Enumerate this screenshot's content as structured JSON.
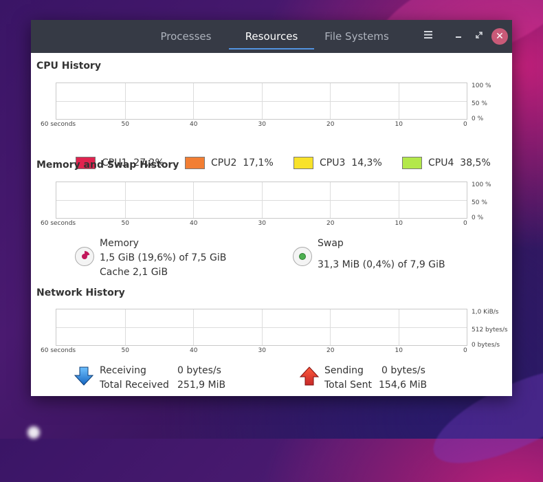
{
  "tabs": [
    {
      "label": "Processes",
      "active": false
    },
    {
      "label": "Resources",
      "active": true
    },
    {
      "label": "File Systems",
      "active": false
    }
  ],
  "window_controls": {
    "menu_icon": "hamburger-icon",
    "minimize_icon": "minimize-icon",
    "maximize_icon": "maximize-icon",
    "close_icon": "close-icon"
  },
  "cpu": {
    "title": "CPU History",
    "y_labels": [
      "100 %",
      "50 %",
      "0 %"
    ],
    "x_labels": [
      "60 seconds",
      "50",
      "40",
      "30",
      "20",
      "10",
      "0"
    ],
    "cores": [
      {
        "name": "CPU1",
        "value": "27,2%",
        "color": "#e0234f"
      },
      {
        "name": "CPU2",
        "value": "17,1%",
        "color": "#f27e33"
      },
      {
        "name": "CPU3",
        "value": "14,3%",
        "color": "#f8e22a"
      },
      {
        "name": "CPU4",
        "value": "38,5%",
        "color": "#b3e84a"
      }
    ]
  },
  "memory": {
    "title": "Memory and Swap History",
    "y_labels": [
      "100 %",
      "50 %",
      "0 %"
    ],
    "x_labels": [
      "60 seconds",
      "50",
      "40",
      "30",
      "20",
      "10",
      "0"
    ],
    "memory_label": "Memory",
    "memory_usage": "1,5 GiB (19,6%) of 7,5 GiB",
    "cache": "Cache 2,1 GiB",
    "memory_color": "#c2185b",
    "memory_fraction": 0.196,
    "swap_label": "Swap",
    "swap_usage": "31,3 MiB (0,4%) of 7,9 GiB",
    "swap_color": "#4caf50",
    "swap_fraction": 0.004
  },
  "network": {
    "title": "Network History",
    "y_labels": [
      "1,0 KiB/s",
      "512 bytes/s",
      "0 bytes/s"
    ],
    "x_labels": [
      "60 seconds",
      "50",
      "40",
      "30",
      "20",
      "10",
      "0"
    ],
    "receiving_label": "Receiving",
    "receiving_value": "0 bytes/s",
    "total_received_label": "Total Received",
    "total_received_value": "251,9 MiB",
    "sending_label": "Sending",
    "sending_value": "0 bytes/s",
    "total_sent_label": "Total Sent",
    "total_sent_value": "154,6 MiB"
  }
}
